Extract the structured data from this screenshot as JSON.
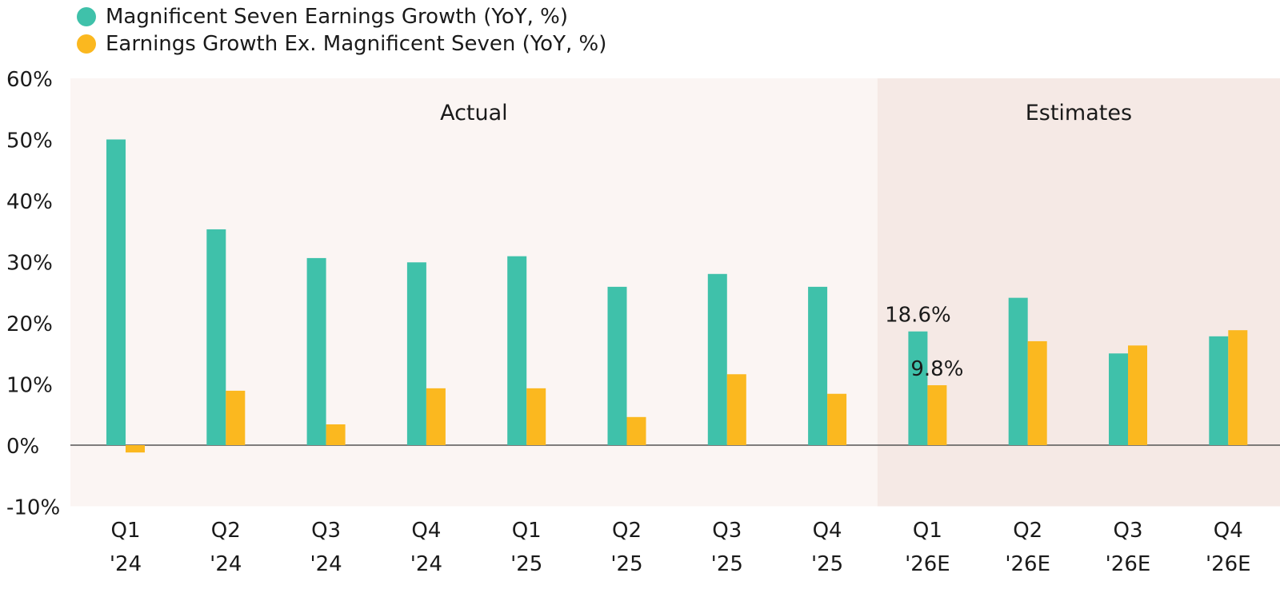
{
  "colors": {
    "mag7": "#3fc1aa",
    "ex_mag7": "#fbb81f",
    "actual_bg": "#fbf5f3",
    "estimates_bg": "#f5e9e5",
    "zero_line": "#555555",
    "text": "#1a1a1a"
  },
  "chart_data": {
    "type": "bar",
    "title": "",
    "xlabel": "",
    "ylabel": "",
    "ylim": [
      -10,
      60
    ],
    "yticks": [
      -10,
      0,
      10,
      20,
      30,
      40,
      50,
      60
    ],
    "ytick_labels": [
      "-10%",
      "0%",
      "10%",
      "20%",
      "30%",
      "40%",
      "50%",
      "60%"
    ],
    "categories": [
      "Q1 '24",
      "Q2 '24",
      "Q3 '24",
      "Q4 '24",
      "Q1 '25",
      "Q2 '25",
      "Q3 '25",
      "Q4 '25",
      "Q1 '26E",
      "Q2 '26E",
      "Q3 '26E",
      "Q4 '26E"
    ],
    "category_lines": [
      [
        "Q1",
        "'24"
      ],
      [
        "Q2",
        "'24"
      ],
      [
        "Q3",
        "'24"
      ],
      [
        "Q4",
        "'24"
      ],
      [
        "Q1",
        "'25"
      ],
      [
        "Q2",
        "'25"
      ],
      [
        "Q3",
        "'25"
      ],
      [
        "Q4",
        "'25"
      ],
      [
        "Q1",
        "'26E"
      ],
      [
        "Q2",
        "'26E"
      ],
      [
        "Q3",
        "'26E"
      ],
      [
        "Q4",
        "'26E"
      ]
    ],
    "series": [
      {
        "name": "Magnificent Seven Earnings Growth (YoY, %)",
        "values": [
          50.0,
          35.3,
          30.6,
          29.9,
          30.9,
          25.9,
          28.0,
          25.9,
          18.6,
          24.1,
          15.0,
          17.8
        ]
      },
      {
        "name": "Earnings Growth Ex. Magnificent Seven (YoY, %)",
        "values": [
          -1.2,
          8.9,
          3.4,
          9.3,
          9.3,
          4.6,
          11.6,
          8.4,
          9.8,
          17.0,
          16.3,
          18.8
        ]
      }
    ],
    "regions": [
      {
        "label": "Actual",
        "start_index": 0,
        "end_index": 7
      },
      {
        "label": "Estimates",
        "start_index": 8,
        "end_index": 11
      }
    ],
    "annotations": [
      {
        "series_index": 0,
        "category_index": 8,
        "text": "18.6%"
      },
      {
        "series_index": 1,
        "category_index": 8,
        "text": "9.8%"
      }
    ],
    "legend_position": "top-left",
    "grid": false
  }
}
